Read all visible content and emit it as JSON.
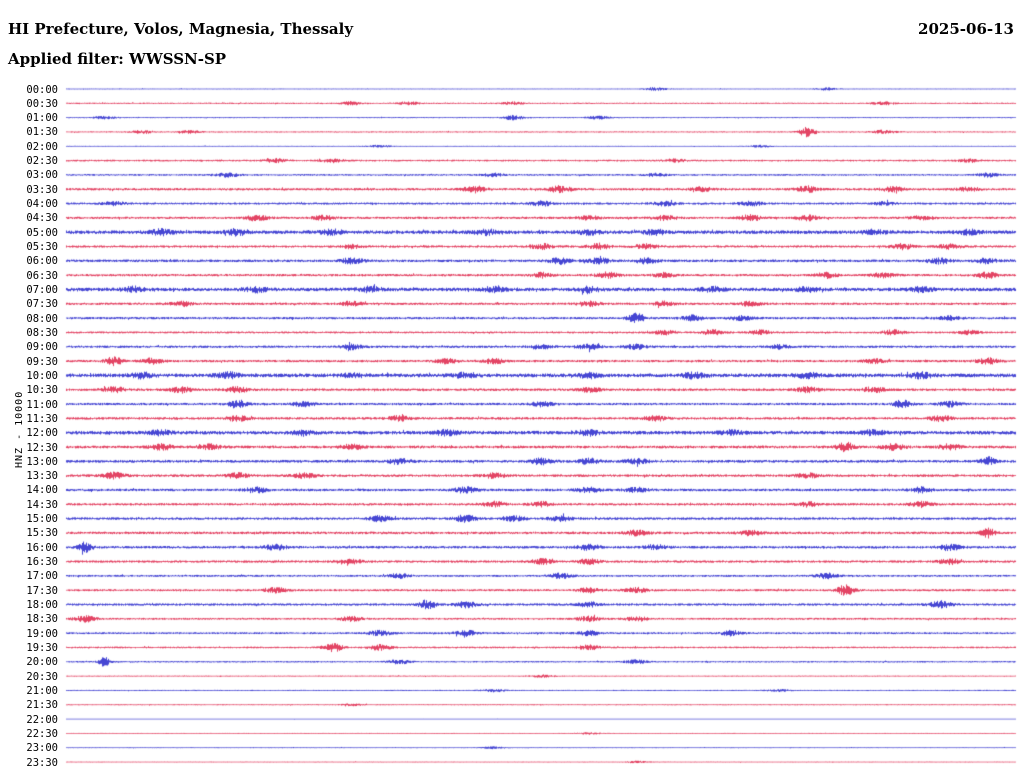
{
  "header": {
    "title": "HI Prefecture, Volos, Magnesia, Thessaly",
    "date": "2025-06-13",
    "filter_label": "Applied filter: WWSSN-SP"
  },
  "y_axis_label": "HNZ - 10000",
  "colors": {
    "blue": "#1616c8",
    "red": "#dc143c"
  },
  "chart_data": {
    "type": "line",
    "subtype": "helicorder",
    "title": "HI Prefecture, Volos, Magnesia, Thessaly",
    "date": "2025-06-13",
    "filter": "WWSSN-SP",
    "channel": "HNZ",
    "scale": 10000,
    "minutes_per_row": 30,
    "legend_position": "none",
    "grid": false,
    "rows": [
      {
        "t": "00:00",
        "c": "blue",
        "a": 0.5,
        "b": [
          [
            0.62,
            1.5
          ],
          [
            0.8,
            1.2
          ]
        ]
      },
      {
        "t": "00:30",
        "c": "red",
        "a": 0.7,
        "b": [
          [
            0.3,
            1.8
          ],
          [
            0.36,
            1.5
          ],
          [
            0.47,
            1.4
          ],
          [
            0.86,
            1.6
          ]
        ]
      },
      {
        "t": "01:00",
        "c": "blue",
        "a": 0.6,
        "b": [
          [
            0.04,
            1.4
          ],
          [
            0.47,
            2.2
          ],
          [
            0.56,
            1.6
          ]
        ]
      },
      {
        "t": "01:30",
        "c": "red",
        "a": 0.7,
        "b": [
          [
            0.08,
            1.5
          ],
          [
            0.13,
            1.4
          ],
          [
            0.78,
            5,
            0.006
          ],
          [
            0.86,
            1.8
          ]
        ]
      },
      {
        "t": "02:00",
        "c": "blue",
        "a": 0.5,
        "b": [
          [
            0.33,
            1.2
          ],
          [
            0.73,
            1.0
          ]
        ]
      },
      {
        "t": "02:30",
        "c": "red",
        "a": 0.9,
        "b": [
          [
            0.22,
            2.0
          ],
          [
            0.28,
            1.8
          ],
          [
            0.64,
            1.5
          ],
          [
            0.95,
            1.5
          ]
        ]
      },
      {
        "t": "03:00",
        "c": "blue",
        "a": 0.9,
        "b": [
          [
            0.17,
            2.0
          ],
          [
            0.45,
            1.5
          ],
          [
            0.62,
            1.4
          ],
          [
            0.97,
            1.8
          ]
        ]
      },
      {
        "t": "03:30",
        "c": "red",
        "a": 1.2,
        "b": [
          [
            0.43,
            3.0
          ],
          [
            0.52,
            3.2
          ],
          [
            0.67,
            2.2
          ],
          [
            0.78,
            2.8
          ],
          [
            0.87,
            2.2
          ],
          [
            0.95,
            1.8
          ]
        ]
      },
      {
        "t": "04:00",
        "c": "blue",
        "a": 1.1,
        "b": [
          [
            0.05,
            1.8
          ],
          [
            0.5,
            2.2
          ],
          [
            0.63,
            2.0
          ],
          [
            0.72,
            2.4
          ],
          [
            0.86,
            1.6
          ]
        ]
      },
      {
        "t": "04:30",
        "c": "red",
        "a": 1.2,
        "b": [
          [
            0.2,
            2.6
          ],
          [
            0.27,
            2.2
          ],
          [
            0.55,
            2.0
          ],
          [
            0.63,
            2.2
          ],
          [
            0.72,
            2.8
          ],
          [
            0.78,
            2.4
          ],
          [
            0.9,
            1.8
          ]
        ]
      },
      {
        "t": "05:00",
        "c": "blue",
        "a": 1.8,
        "b": [
          [
            0.1,
            2.4
          ],
          [
            0.18,
            2.8
          ],
          [
            0.28,
            2.2
          ],
          [
            0.44,
            2.4
          ],
          [
            0.55,
            2.0
          ],
          [
            0.62,
            2.2
          ],
          [
            0.85,
            2.0
          ],
          [
            0.95,
            2.2
          ]
        ]
      },
      {
        "t": "05:30",
        "c": "red",
        "a": 1.2,
        "b": [
          [
            0.3,
            1.8
          ],
          [
            0.5,
            2.6
          ],
          [
            0.56,
            2.8
          ],
          [
            0.61,
            2.4
          ],
          [
            0.88,
            2.6
          ],
          [
            0.93,
            2.2
          ]
        ]
      },
      {
        "t": "06:00",
        "c": "blue",
        "a": 1.3,
        "b": [
          [
            0.3,
            2.8
          ],
          [
            0.52,
            3.0
          ],
          [
            0.56,
            2.6
          ],
          [
            0.61,
            2.4
          ],
          [
            0.92,
            2.6
          ],
          [
            0.97,
            2.4
          ]
        ]
      },
      {
        "t": "06:30",
        "c": "red",
        "a": 1.2,
        "b": [
          [
            0.5,
            2.4
          ],
          [
            0.57,
            2.8
          ],
          [
            0.63,
            2.2
          ],
          [
            0.8,
            2.4
          ],
          [
            0.86,
            2.2
          ],
          [
            0.97,
            2.8
          ]
        ]
      },
      {
        "t": "07:00",
        "c": "blue",
        "a": 1.8,
        "b": [
          [
            0.07,
            2.4
          ],
          [
            0.2,
            2.2
          ],
          [
            0.32,
            2.4
          ],
          [
            0.45,
            2.2
          ],
          [
            0.55,
            2.4
          ],
          [
            0.68,
            2.2
          ],
          [
            0.78,
            2.0
          ],
          [
            0.9,
            2.2
          ]
        ]
      },
      {
        "t": "07:30",
        "c": "red",
        "a": 1.2,
        "b": [
          [
            0.12,
            2.4
          ],
          [
            0.3,
            2.2
          ],
          [
            0.55,
            2.6
          ],
          [
            0.63,
            2.2
          ],
          [
            0.72,
            2.0
          ]
        ]
      },
      {
        "t": "08:00",
        "c": "blue",
        "a": 1.2,
        "b": [
          [
            0.6,
            5,
            0.006
          ],
          [
            0.66,
            2.6
          ],
          [
            0.71,
            2.2
          ],
          [
            0.93,
            2.0
          ]
        ]
      },
      {
        "t": "08:30",
        "c": "red",
        "a": 1.0,
        "b": [
          [
            0.63,
            2.2
          ],
          [
            0.68,
            2.6
          ],
          [
            0.73,
            2.2
          ],
          [
            0.87,
            2.4
          ],
          [
            0.95,
            1.8
          ]
        ]
      },
      {
        "t": "09:00",
        "c": "blue",
        "a": 1.2,
        "b": [
          [
            0.3,
            2.6
          ],
          [
            0.5,
            2.4
          ],
          [
            0.55,
            2.6
          ],
          [
            0.6,
            2.2
          ],
          [
            0.75,
            1.8
          ]
        ]
      },
      {
        "t": "09:30",
        "c": "red",
        "a": 1.2,
        "b": [
          [
            0.05,
            4,
            0.006
          ],
          [
            0.09,
            2.6
          ],
          [
            0.4,
            2.2
          ],
          [
            0.45,
            2.4
          ],
          [
            0.85,
            2.0
          ],
          [
            0.97,
            2.8
          ]
        ]
      },
      {
        "t": "10:00",
        "c": "blue",
        "a": 1.9,
        "b": [
          [
            0.08,
            2.4
          ],
          [
            0.17,
            2.6
          ],
          [
            0.3,
            2.2
          ],
          [
            0.42,
            2.4
          ],
          [
            0.55,
            2.2
          ],
          [
            0.66,
            2.4
          ],
          [
            0.78,
            2.2
          ],
          [
            0.9,
            2.4
          ]
        ]
      },
      {
        "t": "10:30",
        "c": "red",
        "a": 1.3,
        "b": [
          [
            0.05,
            2.6
          ],
          [
            0.12,
            2.8
          ],
          [
            0.18,
            2.4
          ],
          [
            0.55,
            2.2
          ],
          [
            0.78,
            2.4
          ],
          [
            0.85,
            2.6
          ]
        ]
      },
      {
        "t": "11:00",
        "c": "blue",
        "a": 1.2,
        "b": [
          [
            0.18,
            2.8
          ],
          [
            0.25,
            2.4
          ],
          [
            0.5,
            2.2
          ],
          [
            0.88,
            4,
            0.006
          ],
          [
            0.93,
            2.4
          ]
        ]
      },
      {
        "t": "11:30",
        "c": "red",
        "a": 1.3,
        "b": [
          [
            0.18,
            2.6
          ],
          [
            0.35,
            2.2
          ],
          [
            0.62,
            2.4
          ],
          [
            0.92,
            2.8
          ]
        ]
      },
      {
        "t": "12:00",
        "c": "blue",
        "a": 1.8,
        "b": [
          [
            0.1,
            2.2
          ],
          [
            0.25,
            2.4
          ],
          [
            0.4,
            2.2
          ],
          [
            0.55,
            2.4
          ],
          [
            0.7,
            2.2
          ],
          [
            0.85,
            2.4
          ]
        ]
      },
      {
        "t": "12:30",
        "c": "red",
        "a": 1.4,
        "b": [
          [
            0.1,
            2.6
          ],
          [
            0.15,
            2.4
          ],
          [
            0.3,
            2.2
          ],
          [
            0.82,
            4.5,
            0.006
          ],
          [
            0.87,
            2.8
          ],
          [
            0.93,
            2.6
          ]
        ]
      },
      {
        "t": "13:00",
        "c": "blue",
        "a": 1.4,
        "b": [
          [
            0.35,
            2.4
          ],
          [
            0.5,
            2.8
          ],
          [
            0.55,
            2.6
          ],
          [
            0.6,
            2.4
          ],
          [
            0.97,
            4,
            0.005
          ]
        ]
      },
      {
        "t": "13:30",
        "c": "red",
        "a": 1.3,
        "b": [
          [
            0.05,
            2.8
          ],
          [
            0.18,
            2.4
          ],
          [
            0.25,
            2.2
          ],
          [
            0.45,
            2.4
          ],
          [
            0.78,
            2.2
          ]
        ]
      },
      {
        "t": "14:00",
        "c": "blue",
        "a": 1.3,
        "b": [
          [
            0.2,
            2.6
          ],
          [
            0.42,
            2.8
          ],
          [
            0.55,
            2.4
          ],
          [
            0.6,
            2.2
          ],
          [
            0.9,
            2.6
          ]
        ]
      },
      {
        "t": "14:30",
        "c": "red",
        "a": 1.2,
        "b": [
          [
            0.45,
            2.6
          ],
          [
            0.5,
            2.4
          ],
          [
            0.78,
            2.2
          ],
          [
            0.9,
            2.6
          ]
        ]
      },
      {
        "t": "15:00",
        "c": "blue",
        "a": 1.3,
        "b": [
          [
            0.33,
            2.8
          ],
          [
            0.42,
            3.2
          ],
          [
            0.47,
            2.6
          ],
          [
            0.52,
            2.4
          ]
        ]
      },
      {
        "t": "15:30",
        "c": "red",
        "a": 1.3,
        "b": [
          [
            0.6,
            2.4
          ],
          [
            0.72,
            2.2
          ],
          [
            0.97,
            4.5,
            0.005
          ]
        ]
      },
      {
        "t": "16:00",
        "c": "blue",
        "a": 1.3,
        "b": [
          [
            0.02,
            5,
            0.005
          ],
          [
            0.22,
            2.4
          ],
          [
            0.55,
            2.6
          ],
          [
            0.62,
            2.4
          ],
          [
            0.93,
            2.8
          ]
        ]
      },
      {
        "t": "16:30",
        "c": "red",
        "a": 1.2,
        "b": [
          [
            0.3,
            2.4
          ],
          [
            0.5,
            2.6
          ],
          [
            0.55,
            2.4
          ],
          [
            0.93,
            2.6
          ]
        ]
      },
      {
        "t": "17:00",
        "c": "blue",
        "a": 1.0,
        "b": [
          [
            0.35,
            2.2
          ],
          [
            0.52,
            2.4
          ],
          [
            0.8,
            2.6
          ]
        ]
      },
      {
        "t": "17:30",
        "c": "red",
        "a": 1.1,
        "b": [
          [
            0.22,
            2.4
          ],
          [
            0.55,
            2.2
          ],
          [
            0.6,
            2.4
          ],
          [
            0.82,
            5,
            0.006
          ]
        ]
      },
      {
        "t": "18:00",
        "c": "blue",
        "a": 1.2,
        "b": [
          [
            0.38,
            4.5,
            0.006
          ],
          [
            0.42,
            2.8
          ],
          [
            0.55,
            2.4
          ],
          [
            0.92,
            3.2
          ]
        ]
      },
      {
        "t": "18:30",
        "c": "red",
        "a": 1.0,
        "b": [
          [
            0.02,
            2.8
          ],
          [
            0.3,
            2.2
          ],
          [
            0.55,
            2.4
          ],
          [
            0.6,
            2.2
          ]
        ]
      },
      {
        "t": "19:00",
        "c": "blue",
        "a": 1.0,
        "b": [
          [
            0.33,
            2.4
          ],
          [
            0.42,
            2.8
          ],
          [
            0.55,
            2.2
          ],
          [
            0.7,
            2.4
          ]
        ]
      },
      {
        "t": "19:30",
        "c": "red",
        "a": 0.9,
        "b": [
          [
            0.28,
            4.5,
            0.007
          ],
          [
            0.33,
            2.6
          ],
          [
            0.55,
            2.2
          ]
        ]
      },
      {
        "t": "20:00",
        "c": "blue",
        "a": 0.8,
        "b": [
          [
            0.04,
            4.5,
            0.004
          ],
          [
            0.35,
            2.0
          ],
          [
            0.6,
            1.8
          ]
        ]
      },
      {
        "t": "20:30",
        "c": "red",
        "a": 0.6,
        "b": [
          [
            0.5,
            1.2
          ]
        ]
      },
      {
        "t": "21:00",
        "c": "blue",
        "a": 0.6,
        "b": [
          [
            0.45,
            1.4
          ],
          [
            0.75,
            1.0
          ]
        ]
      },
      {
        "t": "21:30",
        "c": "red",
        "a": 0.6,
        "b": [
          [
            0.3,
            1.0
          ]
        ]
      },
      {
        "t": "22:00",
        "c": "blue",
        "a": 0.35,
        "b": []
      },
      {
        "t": "22:30",
        "c": "red",
        "a": 0.5,
        "b": [
          [
            0.55,
            0.9
          ]
        ]
      },
      {
        "t": "23:00",
        "c": "blue",
        "a": 0.5,
        "b": [
          [
            0.45,
            1.0
          ]
        ]
      },
      {
        "t": "23:30",
        "c": "red",
        "a": 0.5,
        "b": [
          [
            0.6,
            0.9
          ]
        ]
      }
    ]
  }
}
